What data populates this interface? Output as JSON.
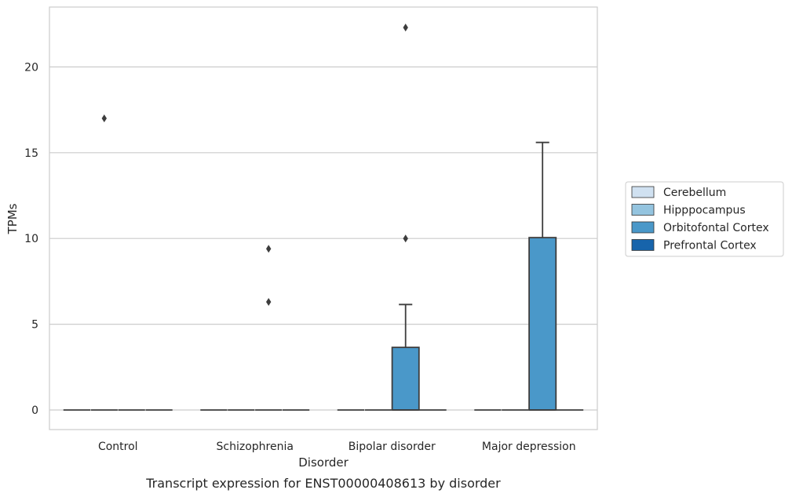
{
  "chart_data": {
    "type": "box",
    "xlabel": "Disorder",
    "ylabel": "TPMs",
    "caption": "Transcript expression for ENST00000408613 by disorder",
    "categories": [
      "Control",
      "Schizophrenia",
      "Bipolar disorder",
      "Major depression"
    ],
    "yticks": [
      0,
      5,
      10,
      15,
      20
    ],
    "ylim": [
      -1.1,
      23.6
    ],
    "grid": "y",
    "legend_position": "right",
    "series": [
      {
        "name": "Cerebellum",
        "color": "#d0e1f1",
        "boxes": [
          {
            "min": 0,
            "q1": 0,
            "median": 0,
            "q3": 0,
            "max": 0,
            "outliers": []
          },
          {
            "min": 0,
            "q1": 0,
            "median": 0,
            "q3": 0,
            "max": 0,
            "outliers": []
          },
          {
            "min": 0,
            "q1": 0,
            "median": 0,
            "q3": 0,
            "max": 0,
            "outliers": []
          },
          {
            "min": 0,
            "q1": 0,
            "median": 0,
            "q3": 0,
            "max": 0,
            "outliers": []
          }
        ]
      },
      {
        "name": "Hipppocampus",
        "color": "#94c4df",
        "boxes": [
          {
            "min": 0,
            "q1": 0,
            "median": 0,
            "q3": 0,
            "max": 0,
            "outliers": [
              17.0
            ]
          },
          {
            "min": 0,
            "q1": 0,
            "median": 0,
            "q3": 0,
            "max": 0,
            "outliers": []
          },
          {
            "min": 0,
            "q1": 0,
            "median": 0,
            "q3": 0,
            "max": 0,
            "outliers": []
          },
          {
            "min": 0,
            "q1": 0,
            "median": 0,
            "q3": 0,
            "max": 0,
            "outliers": []
          }
        ]
      },
      {
        "name": "Orbitofontal Cortex",
        "color": "#4a98c9",
        "boxes": [
          {
            "min": 0,
            "q1": 0,
            "median": 0,
            "q3": 0,
            "max": 0,
            "outliers": []
          },
          {
            "min": 0,
            "q1": 0,
            "median": 0,
            "q3": 0,
            "max": 0,
            "outliers": [
              9.4,
              6.3
            ]
          },
          {
            "min": 0,
            "q1": 0,
            "median": 0,
            "q3": 3.65,
            "max": 6.15,
            "outliers": [
              22.3,
              10.0
            ]
          },
          {
            "min": 0,
            "q1": 0,
            "median": 0,
            "q3": 10.05,
            "max": 15.6,
            "outliers": []
          }
        ]
      },
      {
        "name": "Prefrontal Cortex",
        "color": "#1764ab",
        "boxes": [
          {
            "min": 0,
            "q1": 0,
            "median": 0,
            "q3": 0,
            "max": 0,
            "outliers": []
          },
          {
            "min": 0,
            "q1": 0,
            "median": 0,
            "q3": 0,
            "max": 0,
            "outliers": []
          },
          {
            "min": 0,
            "q1": 0,
            "median": 0,
            "q3": 0,
            "max": 0,
            "outliers": []
          },
          {
            "min": 0,
            "q1": 0,
            "median": 0,
            "q3": 0,
            "max": 0,
            "outliers": []
          }
        ]
      }
    ]
  }
}
